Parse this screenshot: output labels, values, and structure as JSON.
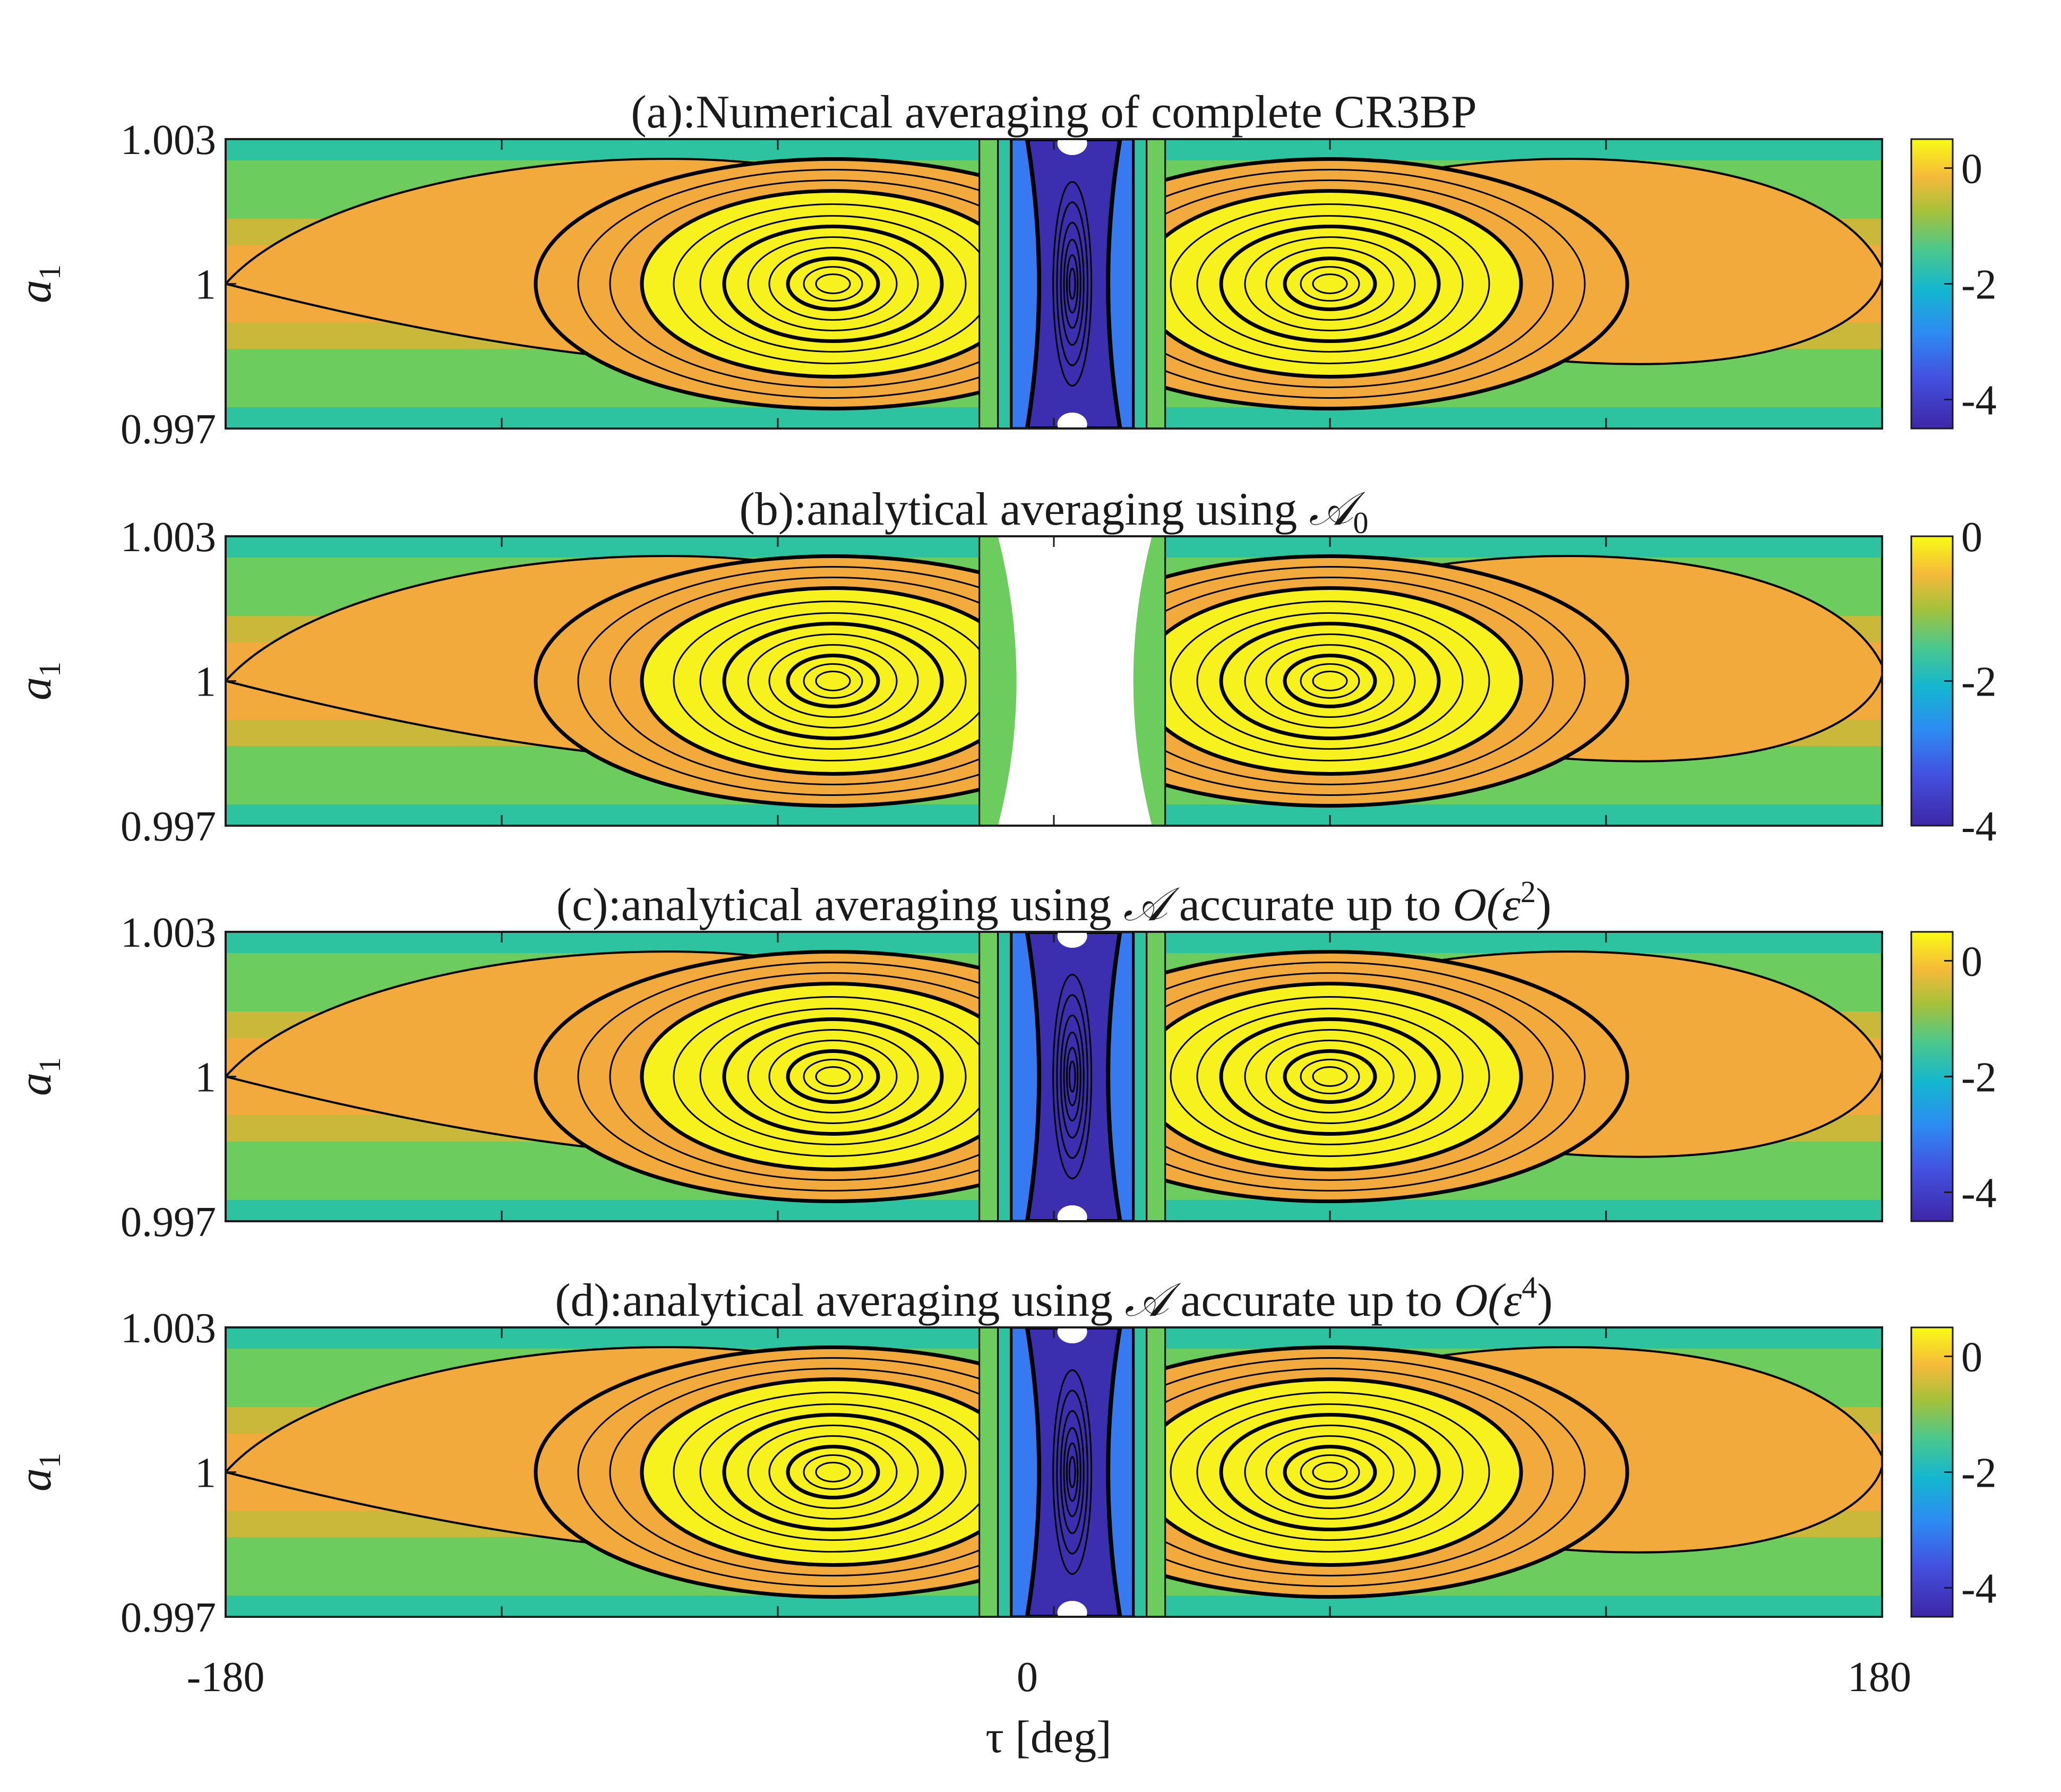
{
  "chart_data": [
    {
      "type": "heatmap",
      "panel": "a",
      "title": "(a):Numerical averaging of complete CR3BP",
      "ylabel": "a",
      "ylabel_sub": "1",
      "yticks": [
        "1.003",
        "1",
        "0.997"
      ],
      "ylim": [
        0.997,
        1.003
      ],
      "xlim": [
        -180,
        180
      ],
      "colorbar": {
        "range": [
          -4.5,
          0.5
        ],
        "ticks": [
          {
            "v": 0,
            "label": "0"
          },
          {
            "v": -2,
            "label": "-2"
          },
          {
            "v": -4,
            "label": "-4"
          }
        ]
      },
      "center_region": "deep"
    },
    {
      "type": "heatmap",
      "panel": "b",
      "title_parts": [
        "(b):analytical averaging using ",
        "𝒜",
        "0",
        ""
      ],
      "ylabel": "a",
      "ylabel_sub": "1",
      "yticks": [
        "1.003",
        "1",
        "0.997"
      ],
      "ylim": [
        0.997,
        1.003
      ],
      "xlim": [
        -180,
        180
      ],
      "colorbar": {
        "range": [
          -4,
          0
        ],
        "ticks": [
          {
            "v": 0,
            "label": "0"
          },
          {
            "v": -2,
            "label": "-2"
          },
          {
            "v": -4,
            "label": "-4"
          }
        ]
      },
      "center_region": "blank"
    },
    {
      "type": "heatmap",
      "panel": "c",
      "title_parts": [
        "(c):analytical averaging using ",
        "𝒜",
        " accurate up to ",
        "O(ε",
        "2",
        ")"
      ],
      "ylabel": "a",
      "ylabel_sub": "1",
      "yticks": [
        "1.003",
        "1",
        "0.997"
      ],
      "ylim": [
        0.997,
        1.003
      ],
      "xlim": [
        -180,
        180
      ],
      "colorbar": {
        "range": [
          -4.5,
          0.5
        ],
        "ticks": [
          {
            "v": 0,
            "label": "0"
          },
          {
            "v": -2,
            "label": "-2"
          },
          {
            "v": -4,
            "label": "-4"
          }
        ]
      },
      "center_region": "deep"
    },
    {
      "type": "heatmap",
      "panel": "d",
      "title_parts": [
        "(d):analytical averaging using ",
        "𝒜",
        " accurate up to ",
        "O(ε",
        "4",
        ")"
      ],
      "ylabel": "a",
      "ylabel_sub": "1",
      "yticks": [
        "1.003",
        "1",
        "0.997"
      ],
      "ylim": [
        0.997,
        1.003
      ],
      "xlim": [
        -180,
        180
      ],
      "xticks": [
        "-180",
        "0",
        "180"
      ],
      "xlabel": "τ [deg]",
      "colorbar": {
        "range": [
          -4.5,
          0.5
        ],
        "ticks": [
          {
            "v": 0,
            "label": "0"
          },
          {
            "v": -2,
            "label": "-2"
          },
          {
            "v": -4,
            "label": "-4"
          }
        ]
      },
      "center_region": "deep"
    }
  ],
  "colors": {
    "yellow": "#f7f21e",
    "orange": "#f3aa3c",
    "olive": "#c9b83a",
    "green": "#6dcc5e",
    "teal": "#2dc2a0",
    "blue": "#3779f0",
    "indigo": "#3b2fb0",
    "contour": "#000000"
  }
}
